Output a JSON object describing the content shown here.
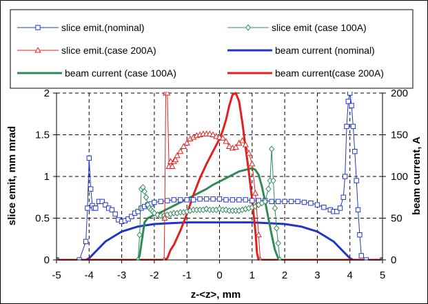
{
  "chart_data": {
    "type": "line",
    "xlabel": "z-<z>, mm",
    "ylabel": "slice emit, mm mrad",
    "y2label": "beam current, A",
    "xlim": [
      -5,
      5
    ],
    "ylim": [
      0,
      2
    ],
    "y2lim": [
      0,
      200
    ],
    "x_ticks": [
      "-5",
      "-4",
      "-3",
      "-2",
      "-1",
      "0",
      "1",
      "2",
      "3",
      "4",
      "5"
    ],
    "y_ticks": [
      "0",
      "0.5",
      "1",
      "1.5",
      "2"
    ],
    "y2_ticks": [
      "0",
      "50",
      "100",
      "150",
      "200"
    ],
    "grid": "dashed",
    "legend_position": "top",
    "series": [
      {
        "name": "slice emit.(nominal)",
        "axis": "left",
        "color": "#1f35c8",
        "marker": "square",
        "x": [
          -5,
          -4.3,
          -4.1,
          -4.05,
          -4.0,
          -3.95,
          -3.9,
          -3.85,
          -3.8,
          -3.7,
          -3.6,
          -3.5,
          -3.4,
          -3.3,
          -3.2,
          -3.1,
          -3.0,
          -2.9,
          -2.8,
          -2.7,
          -2.6,
          -2.5,
          -2.4,
          -2.3,
          -2.2,
          -2.1,
          -2.0,
          -1.8,
          -1.6,
          -1.4,
          -1.2,
          -1.0,
          -0.8,
          -0.6,
          -0.4,
          -0.2,
          0,
          0.2,
          0.4,
          0.6,
          0.8,
          1.0,
          1.2,
          1.4,
          1.6,
          1.8,
          2.0,
          2.2,
          2.4,
          2.6,
          2.8,
          3.0,
          3.2,
          3.4,
          3.5,
          3.6,
          3.7,
          3.8,
          3.85,
          3.9,
          3.95,
          4.0,
          4.05,
          4.1,
          4.15,
          4.2,
          4.25,
          4.3,
          4.35,
          4.5,
          5
        ],
        "y": [
          0,
          0,
          0.22,
          0.62,
          1.22,
          0.85,
          0.65,
          0.62,
          0.62,
          0.7,
          0.7,
          0.66,
          0.62,
          0.6,
          0.55,
          0.48,
          0.46,
          0.47,
          0.49,
          0.52,
          0.56,
          0.58,
          0.62,
          0.64,
          0.66,
          0.67,
          0.69,
          0.7,
          0.71,
          0.72,
          0.72,
          0.72,
          0.72,
          0.73,
          0.73,
          0.73,
          0.73,
          0.72,
          0.72,
          0.72,
          0.72,
          0.71,
          0.71,
          0.71,
          0.7,
          0.7,
          0.7,
          0.7,
          0.7,
          0.69,
          0.68,
          0.66,
          0.63,
          0.6,
          0.58,
          0.58,
          0.62,
          0.75,
          1.0,
          1.6,
          1.9,
          2.0,
          1.85,
          1.6,
          1.3,
          0.95,
          0.6,
          0.3,
          0.05,
          0,
          0
        ]
      },
      {
        "name": "slice emit (case 100A)",
        "axis": "left",
        "color": "#2e8b57",
        "marker": "diamond",
        "x": [
          -5,
          -2.5,
          -2.45,
          -2.4,
          -2.35,
          -2.3,
          -2.25,
          -2.2,
          -2.15,
          -2.1,
          -2.05,
          -2.0,
          -1.9,
          -1.8,
          -1.7,
          -1.6,
          -1.5,
          -1.4,
          -1.3,
          -1.2,
          -1.1,
          -1.0,
          -0.9,
          -0.8,
          -0.7,
          -0.6,
          -0.5,
          -0.4,
          -0.3,
          -0.2,
          -0.1,
          0,
          0.1,
          0.2,
          0.3,
          0.4,
          0.5,
          0.6,
          0.7,
          0.8,
          0.9,
          1.0,
          1.1,
          1.2,
          1.3,
          1.4,
          1.5,
          1.55,
          1.6,
          1.65,
          1.7,
          1.75,
          1.8,
          1.85,
          5
        ],
        "y": [
          0,
          0,
          0.3,
          0.85,
          0.87,
          0.82,
          0.75,
          0.66,
          0.62,
          0.6,
          0.58,
          0.56,
          0.54,
          0.53,
          0.53,
          0.54,
          0.55,
          0.56,
          0.56,
          0.57,
          0.57,
          0.58,
          0.59,
          0.6,
          0.6,
          0.6,
          0.6,
          0.61,
          0.6,
          0.6,
          0.6,
          0.61,
          0.6,
          0.6,
          0.59,
          0.59,
          0.59,
          0.59,
          0.6,
          0.61,
          0.62,
          0.63,
          0.64,
          0.66,
          0.68,
          0.7,
          0.85,
          0.95,
          1.33,
          0.95,
          0.62,
          0.38,
          0.2,
          0,
          0
        ]
      },
      {
        "name": "slice emit.(case 200A)",
        "axis": "left",
        "color": "#e0201c",
        "marker": "triangle",
        "x": [
          -5,
          -1.7,
          -1.68,
          -1.65,
          -1.6,
          -1.55,
          -1.5,
          -1.45,
          -1.4,
          -1.35,
          -1.3,
          -1.2,
          -1.1,
          -1.0,
          -0.9,
          -0.8,
          -0.7,
          -0.6,
          -0.5,
          -0.4,
          -0.3,
          -0.2,
          -0.1,
          0,
          0.1,
          0.2,
          0.3,
          0.4,
          0.5,
          0.6,
          0.7,
          0.8,
          0.9,
          1.0,
          1.1,
          1.2,
          1.25,
          5
        ],
        "y": [
          0,
          0,
          0.5,
          2.0,
          2.0,
          1.12,
          1.18,
          1.12,
          1.18,
          1.2,
          1.25,
          1.3,
          1.36,
          1.4,
          1.45,
          1.47,
          1.49,
          1.5,
          1.51,
          1.51,
          1.51,
          1.5,
          1.48,
          1.47,
          1.46,
          1.42,
          1.36,
          1.34,
          1.35,
          1.4,
          1.43,
          1.38,
          1.28,
          1.15,
          0.8,
          0.3,
          0,
          0
        ]
      },
      {
        "name": "beam current (nominal)",
        "axis": "right",
        "color": "#1f35c8",
        "marker": "none",
        "x": [
          -5,
          -4.1,
          -4.0,
          -3.8,
          -3.5,
          -3.0,
          -2.5,
          -2.0,
          -1.5,
          -1.0,
          -0.5,
          0,
          0.5,
          1.0,
          1.5,
          2.0,
          2.5,
          3.0,
          3.5,
          3.8,
          4.0,
          4.1,
          5
        ],
        "y": [
          0,
          0,
          2,
          10,
          22,
          34,
          40,
          43,
          44,
          45,
          45,
          45,
          45,
          45,
          44,
          43,
          40,
          34,
          22,
          10,
          2,
          0,
          0
        ]
      },
      {
        "name": "beam current (case 100A)",
        "axis": "right",
        "color": "#2e8b57",
        "marker": "none",
        "x": [
          -5,
          -2.5,
          -2.45,
          -2.3,
          -2.2,
          -2.0,
          -1.8,
          -1.6,
          -1.4,
          -1.2,
          -1.0,
          -0.8,
          -0.6,
          -0.4,
          -0.2,
          0,
          0.2,
          0.4,
          0.6,
          0.8,
          1.0,
          1.1,
          1.2,
          1.3,
          1.4,
          1.5,
          1.6,
          1.7,
          1.8,
          1.85,
          5
        ],
        "y": [
          0,
          0,
          5,
          45,
          50,
          54,
          57,
          61,
          65,
          69,
          73,
          77,
          81,
          85,
          90,
          94,
          98,
          102,
          106,
          108,
          110,
          108,
          102,
          88,
          70,
          50,
          30,
          12,
          2,
          0,
          0
        ]
      },
      {
        "name": "beam current(case 200A)",
        "axis": "right",
        "color": "#e0201c",
        "marker": "none",
        "x": [
          -5,
          -1.7,
          -1.6,
          -1.5,
          -1.4,
          -1.2,
          -1.0,
          -0.8,
          -0.6,
          -0.4,
          -0.2,
          0,
          0.1,
          0.2,
          0.3,
          0.4,
          0.5,
          0.6,
          0.7,
          0.8,
          0.9,
          1.0,
          1.1,
          1.15,
          1.2,
          5
        ],
        "y": [
          0,
          0,
          2,
          12,
          18,
          35,
          55,
          78,
          98,
          115,
          130,
          145,
          155,
          168,
          185,
          198,
          200,
          190,
          165,
          135,
          105,
          72,
          35,
          8,
          0,
          0
        ]
      }
    ]
  }
}
